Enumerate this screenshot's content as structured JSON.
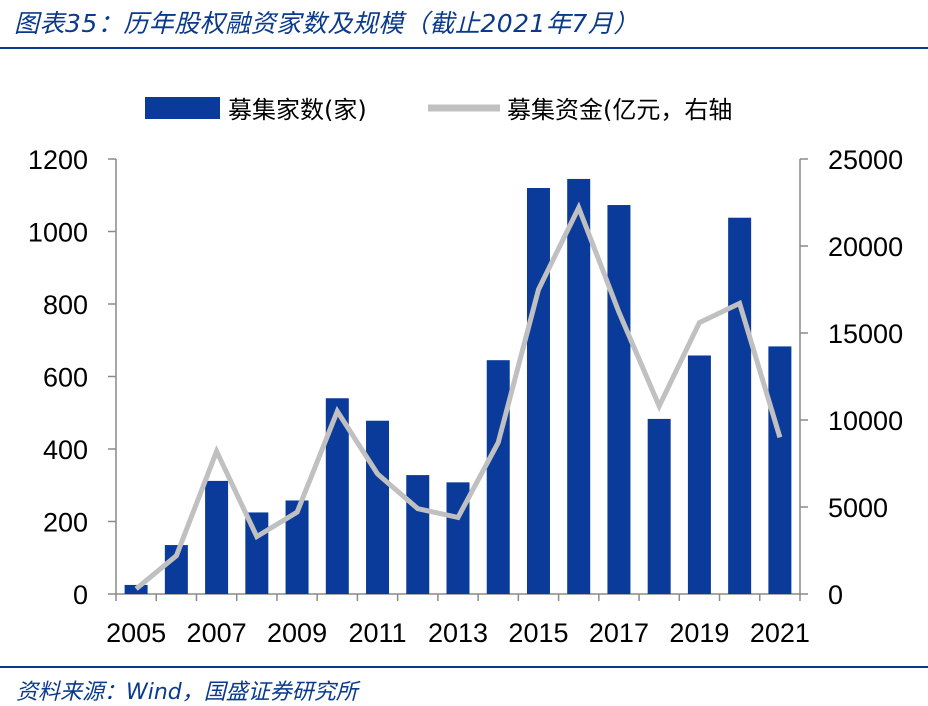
{
  "header": {
    "caption": "图表35：历年股权融资家数及规模（截止2021年7月）"
  },
  "footer": {
    "source": "资料来源：Wind，国盛证券研究所"
  },
  "colors": {
    "bar": "#0a3a9a",
    "line": "#c0c0c0",
    "accent": "#0a3a8c"
  },
  "chart_data": {
    "type": "bar",
    "title": "",
    "categories": [
      "2005",
      "2006",
      "2007",
      "2008",
      "2009",
      "2010",
      "2011",
      "2012",
      "2013",
      "2014",
      "2015",
      "2016",
      "2017",
      "2018",
      "2019",
      "2020",
      "2021"
    ],
    "x_tick_labels": [
      "2005",
      "2007",
      "2009",
      "2011",
      "2013",
      "2015",
      "2017",
      "2019",
      "2021"
    ],
    "series": [
      {
        "name": "募集家数(家)",
        "type": "bar",
        "axis": "left",
        "values": [
          25,
          135,
          312,
          225,
          258,
          540,
          478,
          328,
          308,
          645,
          1120,
          1145,
          1073,
          483,
          658,
          1038,
          683
        ]
      },
      {
        "name": "募集资金(亿元，右轴",
        "type": "line",
        "axis": "right",
        "values": [
          300,
          2200,
          8200,
          3300,
          4700,
          10500,
          6900,
          4900,
          4400,
          8700,
          17500,
          22200,
          16200,
          10800,
          15600,
          16700,
          9000
        ]
      }
    ],
    "y_left": {
      "lim": [
        0,
        1200
      ],
      "ticks": [
        "0",
        "200",
        "400",
        "600",
        "800",
        "1000",
        "1200"
      ]
    },
    "y_right": {
      "lim": [
        0,
        25000
      ],
      "ticks": [
        "0",
        "5000",
        "10000",
        "15000",
        "20000",
        "25000"
      ]
    },
    "grid": false,
    "legend": "top"
  }
}
